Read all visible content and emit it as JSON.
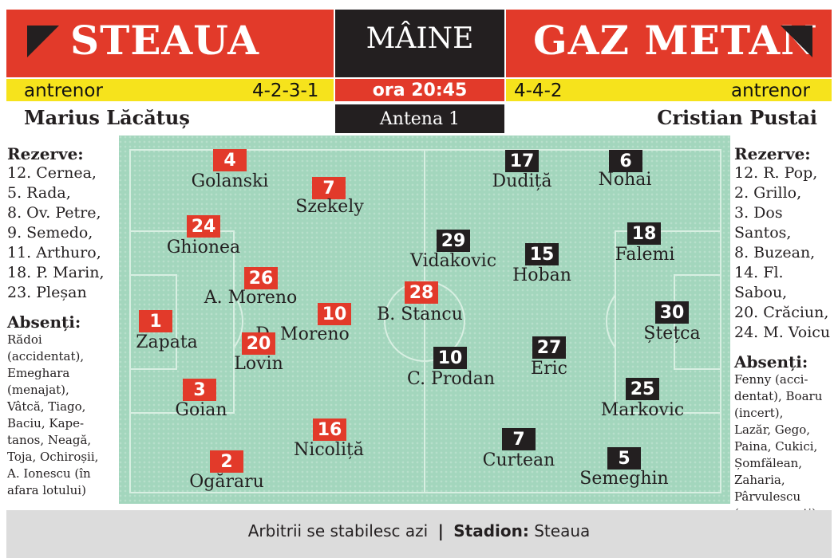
{
  "header": {
    "home_team": "STEAUA",
    "away_team": "GAZ METAN",
    "day": "MÂINE",
    "coach_label": "antrenor",
    "home_formation": "4-2-3-1",
    "away_formation": "4-4-2",
    "time": "ora 20:45",
    "tv": "Antena 1",
    "home_coach": "Marius Lăcătuș",
    "away_coach": "Cristian Pustai"
  },
  "colors": {
    "red": "#e23a2a",
    "dark": "#231f20",
    "yellow": "#f6e31c",
    "pitch": "#a3d6bd"
  },
  "home_side": {
    "reserves_title": "Rezerve:",
    "reserves": [
      "12. Cernea,",
      "5. Rada,",
      "8. Ov. Petre,",
      "9. Semedo,",
      "11. Arthuro,",
      "18. P. Marin,",
      "23. Pleșan"
    ],
    "absent_title": "Absenți:",
    "absent_lines": [
      "Rădoi",
      "(accidentat),",
      "Emeghara",
      "(menajat),",
      "Vâtcă, Tiago,",
      "Baciu, Kape-",
      "tanos, Neagă,",
      "Toja, Ochiroșii,",
      "A. Ionescu (în",
      "afara lotului)"
    ]
  },
  "away_side": {
    "reserves_title": "Rezerve:",
    "reserves": [
      "12. R. Pop,",
      "2. Grillo,",
      "3. Dos Santos,",
      "8. Buzean,",
      "14. Fl. Sabou,",
      "20. Crăciun,",
      "24. M. Voicu"
    ],
    "absent_title": "Absenți:",
    "absent_lines": [
      "Fenny (acci-",
      "dentat), Boaru",
      "(incert),",
      "Lazăr, Gego,",
      "Paina, Cukici,",
      "Șomfălean,",
      "Zaharia,",
      "Pârvulescu",
      "(neconvocați)"
    ]
  },
  "home_players": [
    {
      "number": "4",
      "name": "Golanski"
    },
    {
      "number": "7",
      "name": "Szekely"
    },
    {
      "number": "24",
      "name": "Ghionea"
    },
    {
      "number": "26",
      "name": "A. Moreno"
    },
    {
      "number": "10",
      "name": "D. Moreno"
    },
    {
      "number": "28",
      "name": "B. Stancu"
    },
    {
      "number": "1",
      "name": "Zapata"
    },
    {
      "number": "20",
      "name": "Lovin"
    },
    {
      "number": "3",
      "name": "Goian"
    },
    {
      "number": "16",
      "name": "Nicoliță"
    },
    {
      "number": "2",
      "name": "Ogăraru"
    }
  ],
  "away_players": [
    {
      "number": "17",
      "name": "Dudiță"
    },
    {
      "number": "6",
      "name": "Nohai"
    },
    {
      "number": "29",
      "name": "Vidakovic"
    },
    {
      "number": "15",
      "name": "Hoban"
    },
    {
      "number": "18",
      "name": "Falemi"
    },
    {
      "number": "30",
      "name": "Ștețca"
    },
    {
      "number": "10",
      "name": "C. Prodan"
    },
    {
      "number": "27",
      "name": "Eric"
    },
    {
      "number": "25",
      "name": "Markovic"
    },
    {
      "number": "7",
      "name": "Curtean"
    },
    {
      "number": "5",
      "name": "Semeghin"
    }
  ],
  "footer": {
    "referees": "Arbitrii se stabilesc azi",
    "separator": "|",
    "stadium_label": "Stadion:",
    "stadium": "Steaua"
  }
}
